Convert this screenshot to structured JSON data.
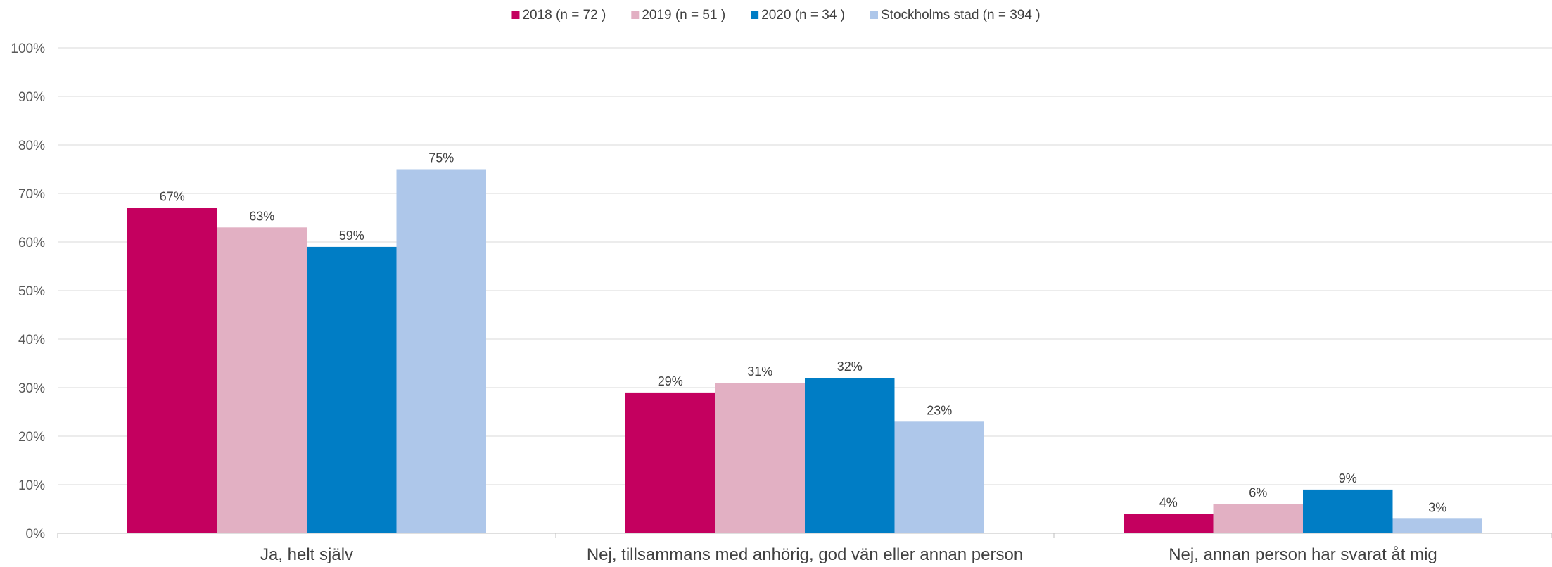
{
  "chart_data": {
    "type": "bar",
    "categories": [
      "Ja, helt själv",
      "Nej, tillsammans med anhörig, god vän eller annan person",
      "Nej, annan person har svarat åt mig"
    ],
    "series": [
      {
        "name": "2018 (n = 72 )",
        "values": [
          67,
          29,
          4
        ],
        "labels": [
          "67%",
          "29%",
          "4%"
        ],
        "color": "#C4005F"
      },
      {
        "name": "2019 (n = 51 )",
        "values": [
          63,
          31,
          6
        ],
        "labels": [
          "63%",
          "31%",
          "6%"
        ],
        "color": "#E2B0C3"
      },
      {
        "name": "2020 (n = 34 )",
        "values": [
          59,
          32,
          9
        ],
        "labels": [
          "59%",
          "32%",
          "9%"
        ],
        "color": "#007DC5"
      },
      {
        "name": "Stockholms stad (n = 394 )",
        "values": [
          75,
          23,
          3
        ],
        "labels": [
          "75%",
          "23%",
          "3%"
        ],
        "color": "#AEC7EA"
      }
    ],
    "yticks": [
      "0%",
      "10%",
      "20%",
      "30%",
      "40%",
      "50%",
      "60%",
      "70%",
      "80%",
      "90%",
      "100%"
    ],
    "ylim": [
      0,
      100
    ],
    "grid": true,
    "legend_position": "top-center"
  }
}
